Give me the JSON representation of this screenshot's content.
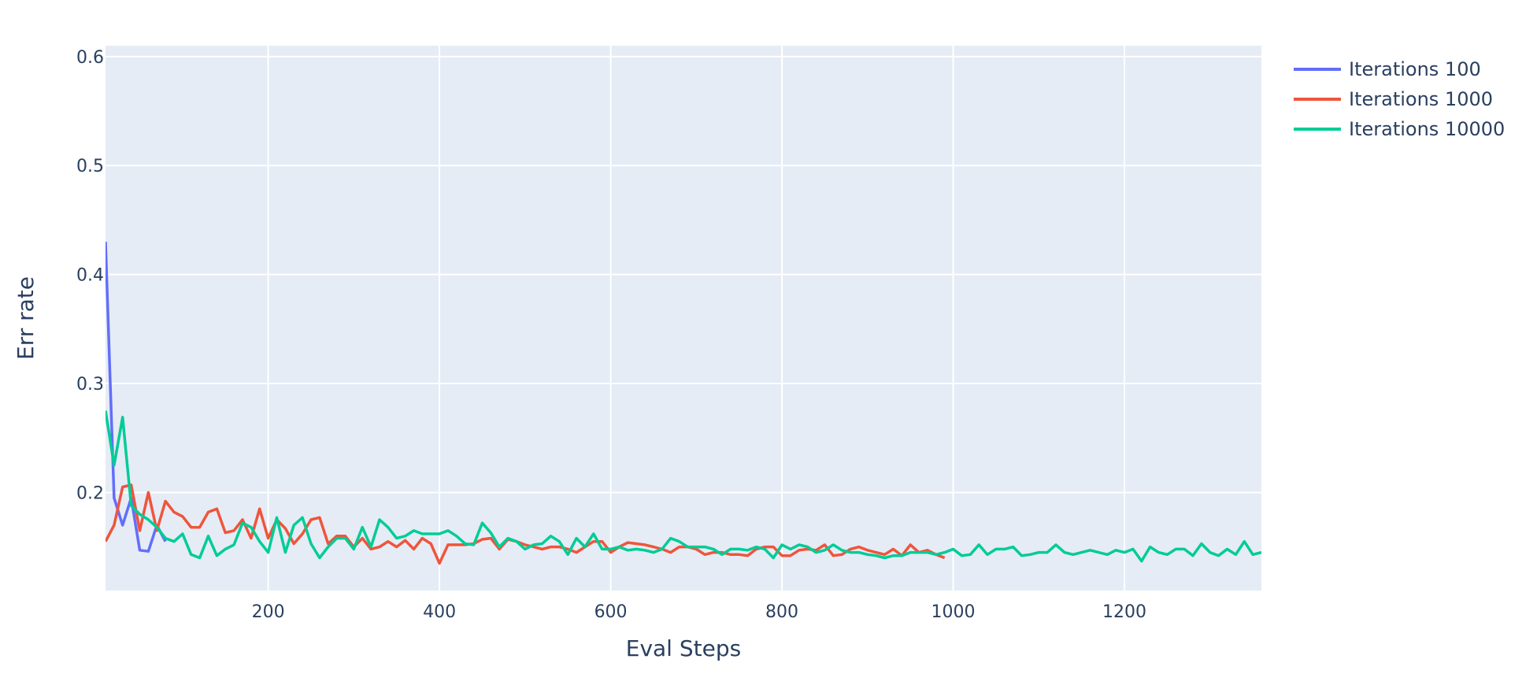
{
  "chart_data": {
    "type": "line",
    "title": "",
    "xlabel": "Eval Steps",
    "ylabel": "Err rate",
    "xlim": [
      10,
      1360
    ],
    "ylim": [
      0.11,
      0.61
    ],
    "x_ticks": [
      200,
      400,
      600,
      800,
      1000,
      1200
    ],
    "y_ticks": [
      0.2,
      0.3,
      0.4,
      0.5,
      0.6
    ],
    "grid": true,
    "plot_background": "#e5ecf6",
    "grid_color": "#ffffff",
    "legend_position": "top-right, outside plot",
    "series": [
      {
        "name": "Iterations 100",
        "color": "#636efa",
        "x": [
          10,
          20,
          30,
          40,
          50,
          60,
          70,
          80
        ],
        "y": [
          0.43,
          0.195,
          0.17,
          0.195,
          0.147,
          0.146,
          0.17,
          0.155
        ]
      },
      {
        "name": "Iterations 1000",
        "color": "#ef553b",
        "x": [
          10,
          20,
          30,
          40,
          50,
          60,
          70,
          80,
          90,
          100,
          110,
          120,
          130,
          140,
          150,
          160,
          170,
          180,
          190,
          200,
          210,
          220,
          230,
          240,
          250,
          260,
          270,
          280,
          290,
          300,
          310,
          320,
          330,
          340,
          350,
          360,
          370,
          380,
          390,
          400,
          410,
          420,
          430,
          440,
          450,
          460,
          470,
          480,
          490,
          500,
          510,
          520,
          530,
          540,
          550,
          560,
          570,
          580,
          590,
          600,
          610,
          620,
          630,
          640,
          650,
          660,
          670,
          680,
          690,
          700,
          710,
          720,
          730,
          740,
          750,
          760,
          770,
          780,
          790,
          800,
          810,
          820,
          830,
          840,
          850,
          860,
          870,
          880,
          890,
          900,
          910,
          920,
          930,
          940,
          950,
          960,
          970,
          980,
          990
        ],
        "y": [
          0.155,
          0.17,
          0.205,
          0.207,
          0.165,
          0.2,
          0.165,
          0.192,
          0.182,
          0.178,
          0.168,
          0.168,
          0.182,
          0.185,
          0.163,
          0.165,
          0.175,
          0.158,
          0.185,
          0.158,
          0.175,
          0.167,
          0.153,
          0.162,
          0.175,
          0.177,
          0.153,
          0.16,
          0.16,
          0.15,
          0.158,
          0.148,
          0.15,
          0.155,
          0.15,
          0.156,
          0.148,
          0.158,
          0.153,
          0.135,
          0.152,
          0.152,
          0.152,
          0.153,
          0.157,
          0.158,
          0.148,
          0.157,
          0.155,
          0.152,
          0.15,
          0.148,
          0.15,
          0.15,
          0.148,
          0.145,
          0.15,
          0.155,
          0.155,
          0.145,
          0.15,
          0.154,
          0.153,
          0.152,
          0.15,
          0.148,
          0.145,
          0.15,
          0.15,
          0.148,
          0.143,
          0.145,
          0.145,
          0.143,
          0.143,
          0.142,
          0.148,
          0.15,
          0.15,
          0.142,
          0.142,
          0.147,
          0.148,
          0.147,
          0.152,
          0.142,
          0.143,
          0.148,
          0.15,
          0.147,
          0.145,
          0.143,
          0.148,
          0.142,
          0.152,
          0.145,
          0.147,
          0.143,
          0.14
        ]
      },
      {
        "name": "Iterations 10000",
        "color": "#00cc96",
        "x": [
          10,
          20,
          30,
          40,
          50,
          60,
          70,
          80,
          90,
          100,
          110,
          120,
          130,
          140,
          150,
          160,
          170,
          180,
          190,
          200,
          210,
          220,
          230,
          240,
          250,
          260,
          270,
          280,
          290,
          300,
          310,
          320,
          330,
          340,
          350,
          360,
          370,
          380,
          390,
          400,
          410,
          420,
          430,
          440,
          450,
          460,
          470,
          480,
          490,
          500,
          510,
          520,
          530,
          540,
          550,
          560,
          570,
          580,
          590,
          600,
          610,
          620,
          630,
          640,
          650,
          660,
          670,
          680,
          690,
          700,
          710,
          720,
          730,
          740,
          750,
          760,
          770,
          780,
          790,
          800,
          810,
          820,
          830,
          840,
          850,
          860,
          870,
          880,
          890,
          900,
          910,
          920,
          930,
          940,
          950,
          960,
          970,
          980,
          990,
          1000,
          1010,
          1020,
          1030,
          1040,
          1050,
          1060,
          1070,
          1080,
          1090,
          1100,
          1110,
          1120,
          1130,
          1140,
          1150,
          1160,
          1170,
          1180,
          1190,
          1200,
          1210,
          1220,
          1230,
          1240,
          1250,
          1260,
          1270,
          1280,
          1290,
          1300,
          1310,
          1320,
          1330,
          1340,
          1350,
          1360
        ],
        "y": [
          0.275,
          0.225,
          0.269,
          0.188,
          0.18,
          0.175,
          0.168,
          0.158,
          0.155,
          0.162,
          0.143,
          0.14,
          0.16,
          0.142,
          0.148,
          0.152,
          0.172,
          0.168,
          0.155,
          0.145,
          0.177,
          0.145,
          0.17,
          0.177,
          0.153,
          0.14,
          0.15,
          0.158,
          0.158,
          0.148,
          0.168,
          0.15,
          0.175,
          0.168,
          0.158,
          0.16,
          0.165,
          0.162,
          0.162,
          0.162,
          0.165,
          0.16,
          0.153,
          0.152,
          0.172,
          0.163,
          0.15,
          0.158,
          0.155,
          0.148,
          0.152,
          0.153,
          0.16,
          0.155,
          0.143,
          0.158,
          0.15,
          0.162,
          0.148,
          0.148,
          0.15,
          0.147,
          0.148,
          0.147,
          0.145,
          0.148,
          0.158,
          0.155,
          0.15,
          0.15,
          0.15,
          0.148,
          0.143,
          0.148,
          0.148,
          0.147,
          0.15,
          0.148,
          0.14,
          0.152,
          0.148,
          0.152,
          0.15,
          0.145,
          0.147,
          0.152,
          0.147,
          0.145,
          0.145,
          0.143,
          0.142,
          0.14,
          0.142,
          0.142,
          0.145,
          0.145,
          0.145,
          0.143,
          0.145,
          0.148,
          0.142,
          0.143,
          0.152,
          0.143,
          0.148,
          0.148,
          0.15,
          0.142,
          0.143,
          0.145,
          0.145,
          0.152,
          0.145,
          0.143,
          0.145,
          0.147,
          0.145,
          0.143,
          0.147,
          0.145,
          0.148,
          0.137,
          0.15,
          0.145,
          0.143,
          0.148,
          0.148,
          0.142,
          0.153,
          0.145,
          0.142,
          0.148,
          0.143,
          0.155,
          0.143,
          0.145
        ]
      }
    ]
  }
}
